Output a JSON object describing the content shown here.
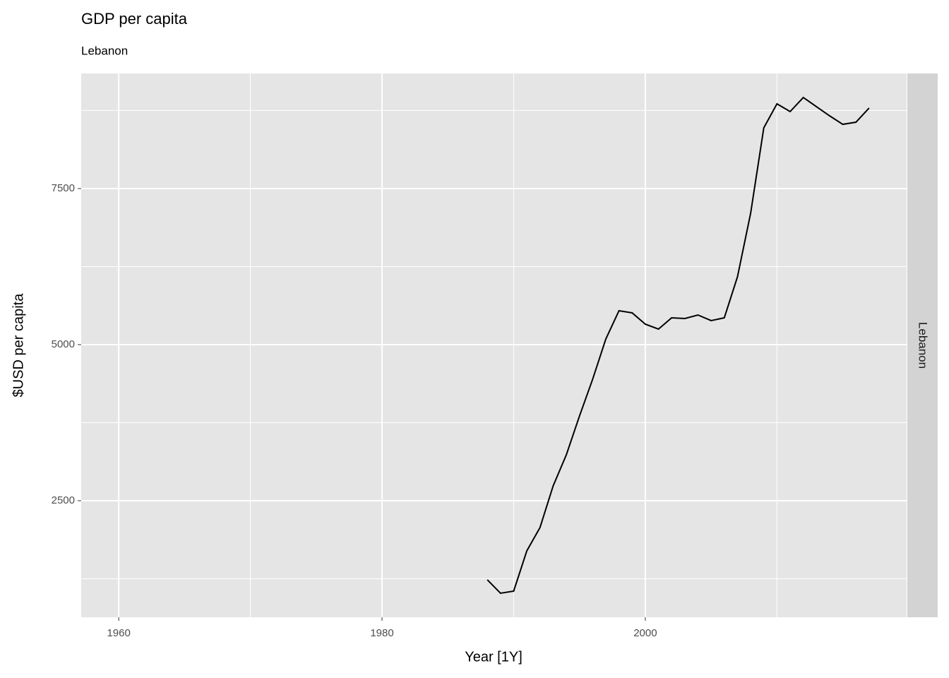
{
  "chart_data": {
    "type": "line",
    "title": "GDP per capita",
    "subtitle": "Lebanon",
    "x_label": "Year [1Y]",
    "y_label": "$USD per capita",
    "strip_label": "Lebanon",
    "x": [
      1988,
      1989,
      1990,
      1991,
      1992,
      1993,
      1994,
      1995,
      1996,
      1997,
      1998,
      1999,
      2000,
      2001,
      2002,
      2003,
      2004,
      2005,
      2006,
      2007,
      2008,
      2009,
      2010,
      2011,
      2012,
      2013,
      2014,
      2015,
      2016,
      2017
    ],
    "series": [
      {
        "name": "Lebanon",
        "color": "#000000",
        "values": [
          1233,
          1018,
          1052,
          1697,
          2070,
          2738,
          3235,
          3857,
          4446,
          5090,
          5543,
          5509,
          5328,
          5249,
          5430,
          5419,
          5475,
          5385,
          5430,
          6086,
          7104,
          8473,
          8857,
          8733,
          8959,
          8812,
          8665,
          8529,
          8563,
          8790
        ]
      }
    ],
    "xlim": [
      1957.15,
      2019.85
    ],
    "xticks": [
      1960,
      1980,
      2000
    ],
    "x_minor_ticks": [
      1970,
      1990,
      2010
    ],
    "ylim": [
      633,
      9344
    ],
    "yticks": [
      2500,
      5000,
      7500
    ],
    "y_minor_ticks": [
      1250,
      3750,
      6250,
      8750
    ],
    "grid": true
  }
}
